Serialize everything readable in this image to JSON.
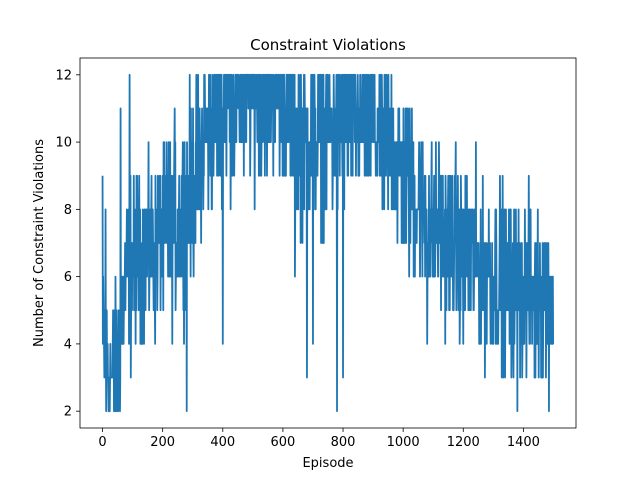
{
  "chart_data": {
    "type": "line",
    "title": "Constraint Violations",
    "xlabel": "Episode",
    "ylabel": "Number of Constraint Violations",
    "xlim": [
      -75,
      1575
    ],
    "ylim": [
      1.5,
      12.5
    ],
    "xticks": [
      0,
      200,
      400,
      600,
      800,
      1000,
      1200,
      1400
    ],
    "yticks": [
      2,
      4,
      6,
      8,
      10,
      12
    ],
    "grid": false,
    "series": [
      {
        "name": "",
        "color": "#1f77b4",
        "trend": [
          [
            0,
            4
          ],
          [
            20,
            3
          ],
          [
            40,
            3
          ],
          [
            60,
            4.5
          ],
          [
            80,
            6
          ],
          [
            120,
            6.5
          ],
          [
            180,
            7
          ],
          [
            240,
            7.5
          ],
          [
            300,
            8.5
          ],
          [
            340,
            10
          ],
          [
            380,
            10.8
          ],
          [
            420,
            11.3
          ],
          [
            480,
            11.5
          ],
          [
            540,
            11.5
          ],
          [
            600,
            11.3
          ],
          [
            640,
            10.5
          ],
          [
            680,
            10
          ],
          [
            720,
            10.2
          ],
          [
            760,
            10.3
          ],
          [
            800,
            10.5
          ],
          [
            840,
            10.6
          ],
          [
            880,
            10.6
          ],
          [
            920,
            10.3
          ],
          [
            960,
            9.8
          ],
          [
            1000,
            9
          ],
          [
            1040,
            8.5
          ],
          [
            1080,
            7.8
          ],
          [
            1120,
            7.3
          ],
          [
            1160,
            7
          ],
          [
            1200,
            6.7
          ],
          [
            1240,
            6.5
          ],
          [
            1280,
            6.2
          ],
          [
            1320,
            6
          ],
          [
            1360,
            5.8
          ],
          [
            1400,
            5.6
          ],
          [
            1440,
            5.5
          ],
          [
            1500,
            5.5
          ]
        ],
        "spread": 1.3,
        "ymin": 2,
        "ymax": 12,
        "n_points": 1501,
        "spikes": [
          [
            0,
            9
          ],
          [
            10,
            8
          ],
          [
            20,
            2
          ],
          [
            30,
            3
          ],
          [
            50,
            2
          ],
          [
            60,
            11
          ],
          [
            90,
            12
          ],
          [
            200,
            9
          ],
          [
            220,
            10
          ],
          [
            240,
            11
          ],
          [
            280,
            2
          ],
          [
            290,
            12
          ],
          [
            340,
            12
          ],
          [
            380,
            12
          ],
          [
            400,
            4
          ],
          [
            470,
            9
          ],
          [
            640,
            6
          ],
          [
            680,
            3
          ],
          [
            700,
            4
          ],
          [
            780,
            2
          ],
          [
            800,
            3
          ],
          [
            1080,
            4
          ],
          [
            1200,
            4
          ],
          [
            1300,
            4
          ],
          [
            1360,
            3
          ],
          [
            1380,
            2
          ],
          [
            1460,
            3
          ],
          [
            1480,
            4
          ],
          [
            1500,
            4
          ]
        ]
      }
    ]
  }
}
